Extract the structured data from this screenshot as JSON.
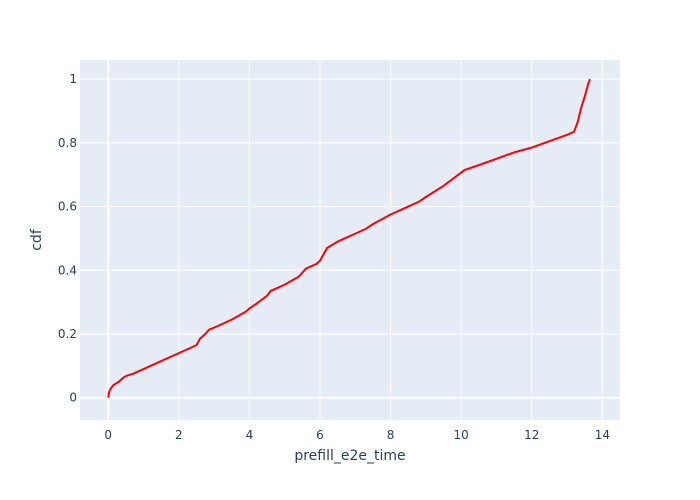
{
  "chart_data": {
    "type": "line",
    "title": "",
    "xlabel": "prefill_e2e_time",
    "ylabel": "cdf",
    "xlim": [
      -0.8,
      14.5
    ],
    "ylim": [
      -0.07,
      1.06
    ],
    "xticks": [
      0,
      2,
      4,
      6,
      8,
      10,
      12,
      14
    ],
    "yticks": [
      0,
      0.2,
      0.4,
      0.6,
      0.8,
      1
    ],
    "xtick_labels": [
      "0",
      "2",
      "4",
      "6",
      "8",
      "10",
      "12",
      "14"
    ],
    "ytick_labels": [
      "0",
      "0.2",
      "0.4",
      "0.6",
      "0.8",
      "1"
    ],
    "grid": true,
    "plot_bgcolor": "#e5ecf6",
    "grid_color": "#ffffff",
    "series": [
      {
        "color": "#ff0000",
        "x": [
          0.0,
          0.03,
          0.08,
          0.15,
          0.3,
          0.45,
          0.55,
          0.7,
          1.0,
          1.5,
          2.0,
          2.5,
          2.6,
          2.75,
          2.85,
          3.0,
          3.5,
          3.9,
          4.0,
          4.2,
          4.5,
          4.6,
          4.8,
          5.0,
          5.4,
          5.6,
          5.9,
          6.0,
          6.1,
          6.2,
          6.5,
          7.0,
          7.3,
          7.5,
          8.0,
          8.5,
          8.8,
          9.0,
          9.5,
          9.8,
          10.1,
          10.5,
          11.0,
          11.5,
          12.0,
          12.5,
          13.0,
          13.2,
          13.3,
          13.4,
          13.5,
          13.6,
          13.65
        ],
        "y": [
          0.0,
          0.02,
          0.03,
          0.04,
          0.05,
          0.065,
          0.07,
          0.075,
          0.09,
          0.115,
          0.14,
          0.165,
          0.185,
          0.2,
          0.213,
          0.22,
          0.245,
          0.27,
          0.28,
          0.295,
          0.32,
          0.335,
          0.345,
          0.355,
          0.38,
          0.405,
          0.42,
          0.43,
          0.45,
          0.47,
          0.49,
          0.515,
          0.53,
          0.545,
          0.575,
          0.6,
          0.615,
          0.63,
          0.665,
          0.69,
          0.715,
          0.73,
          0.75,
          0.77,
          0.785,
          0.805,
          0.825,
          0.835,
          0.865,
          0.91,
          0.945,
          0.985,
          1.0
        ]
      }
    ]
  }
}
